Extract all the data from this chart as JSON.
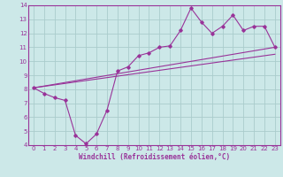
{
  "title": "",
  "xlabel": "Windchill (Refroidissement éolien,°C)",
  "ylabel": "",
  "bg_color": "#cce8e8",
  "grid_color": "#aacccc",
  "line_color": "#993399",
  "xlim": [
    -0.5,
    23.5
  ],
  "ylim": [
    4,
    14
  ],
  "xticks": [
    0,
    1,
    2,
    3,
    4,
    5,
    6,
    7,
    8,
    9,
    10,
    11,
    12,
    13,
    14,
    15,
    16,
    17,
    18,
    19,
    20,
    21,
    22,
    23
  ],
  "yticks": [
    4,
    5,
    6,
    7,
    8,
    9,
    10,
    11,
    12,
    13,
    14
  ],
  "line1_x": [
    0,
    1,
    2,
    3,
    4,
    5,
    6,
    7,
    8,
    9,
    10,
    11,
    12,
    13,
    14,
    15,
    16,
    17,
    18,
    19,
    20,
    21,
    22,
    23
  ],
  "line1_y": [
    8.1,
    7.7,
    7.4,
    7.2,
    4.7,
    4.1,
    4.8,
    6.5,
    9.3,
    9.6,
    10.4,
    10.6,
    11.0,
    11.1,
    12.2,
    13.8,
    12.8,
    12.0,
    12.5,
    13.3,
    12.2,
    12.5,
    12.5,
    11.0
  ],
  "line2_x": [
    0,
    23
  ],
  "line2_y": [
    8.1,
    11.0
  ],
  "line3_x": [
    0,
    23
  ],
  "line3_y": [
    8.1,
    10.5
  ],
  "figsize": [
    3.2,
    2.0
  ],
  "dpi": 100,
  "tick_fontsize": 5.0,
  "xlabel_fontsize": 5.5
}
